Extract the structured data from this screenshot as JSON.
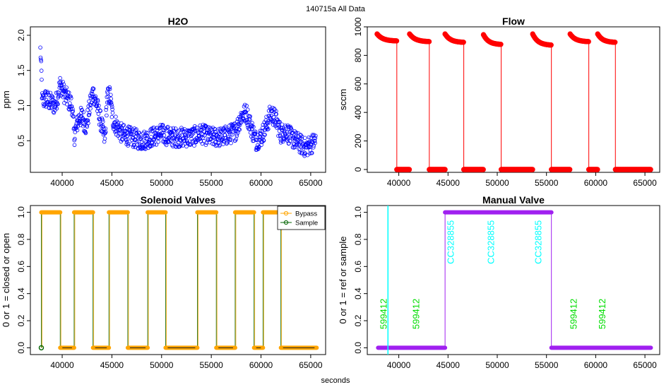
{
  "figure": {
    "title": "140715a   All Data",
    "xlabel": "seconds"
  },
  "chart_data": [
    {
      "type": "scatter",
      "title": "H2O",
      "xlabel": "",
      "ylabel": "ppm",
      "xlim": [
        36800,
        66500
      ],
      "ylim": [
        0.05,
        2.12
      ],
      "xticks": [
        40000,
        45000,
        50000,
        55000,
        60000,
        65000
      ],
      "yticks": [
        0.5,
        1.0,
        1.5,
        2.0
      ],
      "ytick_labels": [
        "0.5",
        "1.0",
        "1.5",
        "2.0"
      ],
      "series": [
        {
          "name": "H2O",
          "color": "#0000ff",
          "marker": "open-circle",
          "profile_x": [
            37800,
            37900,
            38000,
            38300,
            38800,
            39300,
            39800,
            40100,
            40500,
            41000,
            41200,
            41600,
            42000,
            42400,
            42800,
            43100,
            43500,
            44000,
            44300,
            44500,
            44800,
            45100,
            45500,
            46000,
            47000,
            48000,
            49000,
            50000,
            51000,
            52000,
            53000,
            54000,
            55000,
            56000,
            57000,
            57500,
            58000,
            58500,
            59000,
            59500,
            60000,
            60500,
            61000,
            61500,
            62000,
            62500,
            63000,
            63500,
            64000,
            64500,
            65000,
            65500
          ],
          "profile_y": [
            1.8,
            1.5,
            1.05,
            1.1,
            1.05,
            1.0,
            1.3,
            1.2,
            1.1,
            1.0,
            0.55,
            0.8,
            0.85,
            0.7,
            1.0,
            1.2,
            1.0,
            0.7,
            0.5,
            1.1,
            1.15,
            0.8,
            0.7,
            0.6,
            0.55,
            0.5,
            0.55,
            0.6,
            0.55,
            0.55,
            0.55,
            0.6,
            0.55,
            0.55,
            0.6,
            0.65,
            0.85,
            0.9,
            0.7,
            0.5,
            0.55,
            0.7,
            0.9,
            0.8,
            0.6,
            0.65,
            0.55,
            0.5,
            0.45,
            0.4,
            0.45,
            0.5
          ],
          "noise": 0.14,
          "step": 28
        }
      ]
    },
    {
      "type": "scatter",
      "title": "Flow",
      "xlabel": "",
      "ylabel": "sccm",
      "xlim": [
        36800,
        66500
      ],
      "ylim": [
        -20,
        1000
      ],
      "xticks": [
        40000,
        45000,
        50000,
        55000,
        60000,
        65000
      ],
      "yticks": [
        0,
        200,
        400,
        600,
        800,
        1000
      ],
      "ytick_labels": [
        "0",
        "200",
        "400",
        "600",
        "800",
        "1000"
      ],
      "series": [
        {
          "name": "Flow",
          "color": "#ff0000",
          "high_segments": [
            [
              37800,
              39800,
              950,
              900
            ],
            [
              41100,
              43100,
              950,
              895
            ],
            [
              44700,
              46600,
              950,
              890
            ],
            [
              48600,
              50400,
              945,
              875
            ],
            [
              53600,
              55500,
              950,
              870
            ],
            [
              57400,
              59300,
              950,
              895
            ],
            [
              60200,
              62000,
              950,
              890
            ]
          ],
          "low_segments": [
            [
              39800,
              41100
            ],
            [
              43100,
              44700
            ],
            [
              46600,
              48600
            ],
            [
              50400,
              53600
            ],
            [
              55500,
              57400
            ],
            [
              59300,
              60200
            ],
            [
              62000,
              65600
            ]
          ],
          "low_value": 0
        }
      ]
    },
    {
      "type": "line",
      "title": "Solenoid Valves",
      "xlabel": "",
      "ylabel": "0 or 1 = closed or open",
      "xlim": [
        36800,
        66500
      ],
      "ylim": [
        -0.05,
        1.05
      ],
      "xticks": [
        40000,
        45000,
        50000,
        55000,
        60000,
        65000
      ],
      "yticks": [
        0.0,
        0.2,
        0.4,
        0.6,
        0.8,
        1.0
      ],
      "ytick_labels": [
        "0.0",
        "0.2",
        "0.4",
        "0.6",
        "0.8",
        "1.0"
      ],
      "legend": {
        "position": "top-right",
        "entries": [
          "Bypass",
          "Sample"
        ]
      },
      "series": [
        {
          "name": "Bypass",
          "color": "#ffa500",
          "high_segments": [
            [
              37900,
              39800
            ],
            [
              41200,
              43100
            ],
            [
              44700,
              46600
            ],
            [
              48600,
              50400
            ],
            [
              53600,
              55500
            ],
            [
              57400,
              59300
            ],
            [
              60200,
              62000
            ]
          ],
          "low_segments": [
            [
              39800,
              41200
            ],
            [
              43100,
              44700
            ],
            [
              46600,
              48600
            ],
            [
              50400,
              53600
            ],
            [
              55500,
              57400
            ],
            [
              59300,
              60200
            ],
            [
              62000,
              65600
            ]
          ]
        },
        {
          "name": "Sample",
          "color": "#006400",
          "transitions": [
            37900,
            39800,
            41200,
            43100,
            44700,
            46600,
            48600,
            50400,
            53600,
            55500,
            57400,
            59300,
            60200,
            62000
          ],
          "points": [
            [
              37900,
              0.0
            ]
          ]
        }
      ]
    },
    {
      "type": "line",
      "title": "Manual Valve",
      "xlabel": "",
      "ylabel": "0 or 1 = ref or sample",
      "xlim": [
        36800,
        66500
      ],
      "ylim": [
        -0.05,
        1.05
      ],
      "xticks": [
        40000,
        45000,
        50000,
        55000,
        60000,
        65000
      ],
      "yticks": [
        0.0,
        0.2,
        0.4,
        0.6,
        0.8,
        1.0
      ],
      "ytick_labels": [
        "0.0",
        "0.2",
        "0.4",
        "0.6",
        "0.8",
        "1.0"
      ],
      "series": [
        {
          "name": "Manual Valve",
          "color": "#a020f0",
          "segments": [
            [
              37900,
              44700,
              0.0
            ],
            [
              44700,
              55500,
              1.0
            ],
            [
              55500,
              65600,
              0.0
            ]
          ]
        }
      ],
      "vline": {
        "x": 38900,
        "color": "#00ffff"
      },
      "annotations": [
        {
          "text": "599412",
          "x": 38500,
          "y": 0.25,
          "color": "#00dd00"
        },
        {
          "text": "599412",
          "x": 41800,
          "y": 0.25,
          "color": "#00dd00"
        },
        {
          "text": "599412",
          "x": 57800,
          "y": 0.25,
          "color": "#00dd00"
        },
        {
          "text": "599412",
          "x": 60700,
          "y": 0.25,
          "color": "#00dd00"
        },
        {
          "text": "CC328855",
          "x": 45300,
          "y": 0.78,
          "color": "#00ffff"
        },
        {
          "text": "CC328855",
          "x": 49400,
          "y": 0.78,
          "color": "#00ffff"
        },
        {
          "text": "CC328855",
          "x": 54200,
          "y": 0.78,
          "color": "#00ffff"
        }
      ]
    }
  ]
}
